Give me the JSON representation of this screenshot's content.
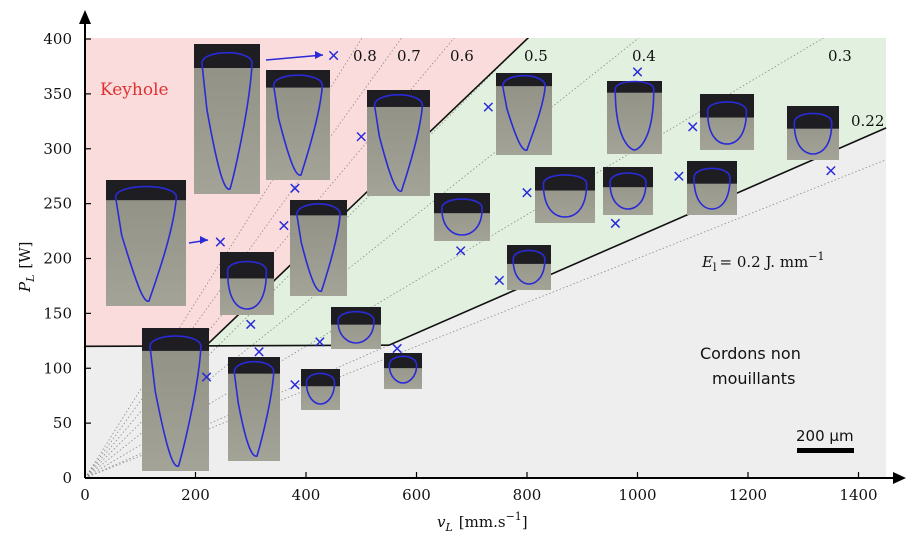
{
  "chart_data": {
    "type": "scatter",
    "title": "",
    "xlabel": "v_L [mm.s^-1]",
    "xlabel_main": "v",
    "xlabel_sub": "L",
    "xlabel_unit": "[mm.s",
    "xlabel_unit_exp": "−1",
    "xlabel_unit_close": "]",
    "ylabel": "P_L [W]",
    "ylabel_main": "P",
    "ylabel_sub": "L",
    "ylabel_unit": "[W]",
    "xlim": [
      0,
      1450
    ],
    "ylim": [
      0,
      410
    ],
    "xticks": [
      "0",
      "200",
      "400",
      "600",
      "800",
      "1000",
      "1200",
      "1400"
    ],
    "yticks": [
      "0",
      "50",
      "100",
      "150",
      "200",
      "250",
      "300",
      "350",
      "400"
    ],
    "grid": false,
    "iso_energy_lines": [
      "0.8",
      "0.7",
      "0.6",
      "0.5",
      "0.4",
      "0.3",
      "0.22"
    ],
    "iso_energy_slopes": [
      0.8,
      0.7,
      0.6,
      0.5,
      0.4,
      0.3,
      0.22
    ],
    "energy_annotation": {
      "symbol": "E",
      "sub": "l",
      "value": "= 0.2 J. mm",
      "exp": "−1",
      "slope": 0.2
    },
    "regions": {
      "keyhole": {
        "label": "Keyhole",
        "color": "#fadcdc"
      },
      "conduction": {
        "label": "",
        "color": "#e2f0df"
      },
      "non_wetting": {
        "label_line1": "Cordons non",
        "label_line2": "mouillants",
        "color": "#eeeeee"
      }
    },
    "boundaries": {
      "power_threshold": 120,
      "lower_boundary_from": [
        550,
        121
      ],
      "lower_boundary_slope": 0.22,
      "upper_boundary_from": [
        220,
        121
      ],
      "upper_boundary_to": [
        800,
        400
      ]
    },
    "points": [
      {
        "x": 450,
        "y": 385
      },
      {
        "x": 1000,
        "y": 370
      },
      {
        "x": 730,
        "y": 338
      },
      {
        "x": 1100,
        "y": 320
      },
      {
        "x": 500,
        "y": 311
      },
      {
        "x": 1350,
        "y": 280
      },
      {
        "x": 1075,
        "y": 275
      },
      {
        "x": 380,
        "y": 264
      },
      {
        "x": 800,
        "y": 260
      },
      {
        "x": 960,
        "y": 232
      },
      {
        "x": 360,
        "y": 230
      },
      {
        "x": 245,
        "y": 215
      },
      {
        "x": 680,
        "y": 207
      },
      {
        "x": 750,
        "y": 180
      },
      {
        "x": 300,
        "y": 140
      },
      {
        "x": 425,
        "y": 124
      },
      {
        "x": 565,
        "y": 118
      },
      {
        "x": 315,
        "y": 115
      },
      {
        "x": 220,
        "y": 92
      },
      {
        "x": 380,
        "y": 85
      }
    ],
    "point_color": "#2a2ad8",
    "scale_bar": {
      "label": "200 μm"
    }
  }
}
